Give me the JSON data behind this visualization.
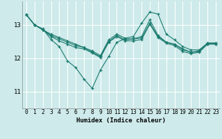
{
  "title": "",
  "xlabel": "Humidex (Indice chaleur)",
  "ylabel": "",
  "bg_color": "#ceeaea",
  "grid_color": "#ffffff",
  "line_color": "#1a7a6e",
  "xlim": [
    -0.5,
    23.5
  ],
  "ylim": [
    10.5,
    13.7
  ],
  "yticks": [
    11,
    12,
    13
  ],
  "xticks": [
    0,
    1,
    2,
    3,
    4,
    5,
    6,
    7,
    8,
    9,
    10,
    11,
    12,
    13,
    14,
    15,
    16,
    17,
    18,
    19,
    20,
    21,
    22,
    23
  ],
  "series": [
    [
      13.3,
      13.0,
      12.85,
      12.72,
      12.62,
      12.52,
      12.42,
      12.32,
      12.22,
      12.08,
      12.55,
      12.72,
      12.6,
      12.65,
      13.05,
      13.38,
      13.32,
      12.72,
      12.55,
      12.35,
      12.25,
      12.25,
      12.45,
      12.45
    ],
    [
      13.3,
      13.0,
      12.88,
      12.56,
      12.35,
      11.92,
      11.72,
      11.38,
      11.1,
      11.65,
      12.05,
      12.48,
      12.58,
      12.58,
      12.65,
      13.15,
      12.68,
      12.48,
      12.42,
      12.28,
      12.18,
      12.2,
      12.45,
      12.45
    ],
    [
      13.3,
      13.0,
      12.85,
      12.68,
      12.58,
      12.48,
      12.38,
      12.32,
      12.18,
      12.05,
      12.5,
      12.68,
      12.55,
      12.58,
      12.6,
      13.05,
      12.65,
      12.48,
      12.42,
      12.25,
      12.18,
      12.22,
      12.45,
      12.45
    ],
    [
      13.3,
      13.0,
      12.85,
      12.65,
      12.52,
      12.42,
      12.32,
      12.28,
      12.16,
      12.02,
      12.48,
      12.65,
      12.52,
      12.52,
      12.56,
      13.02,
      12.62,
      12.45,
      12.38,
      12.2,
      12.14,
      12.18,
      12.42,
      12.42
    ]
  ]
}
